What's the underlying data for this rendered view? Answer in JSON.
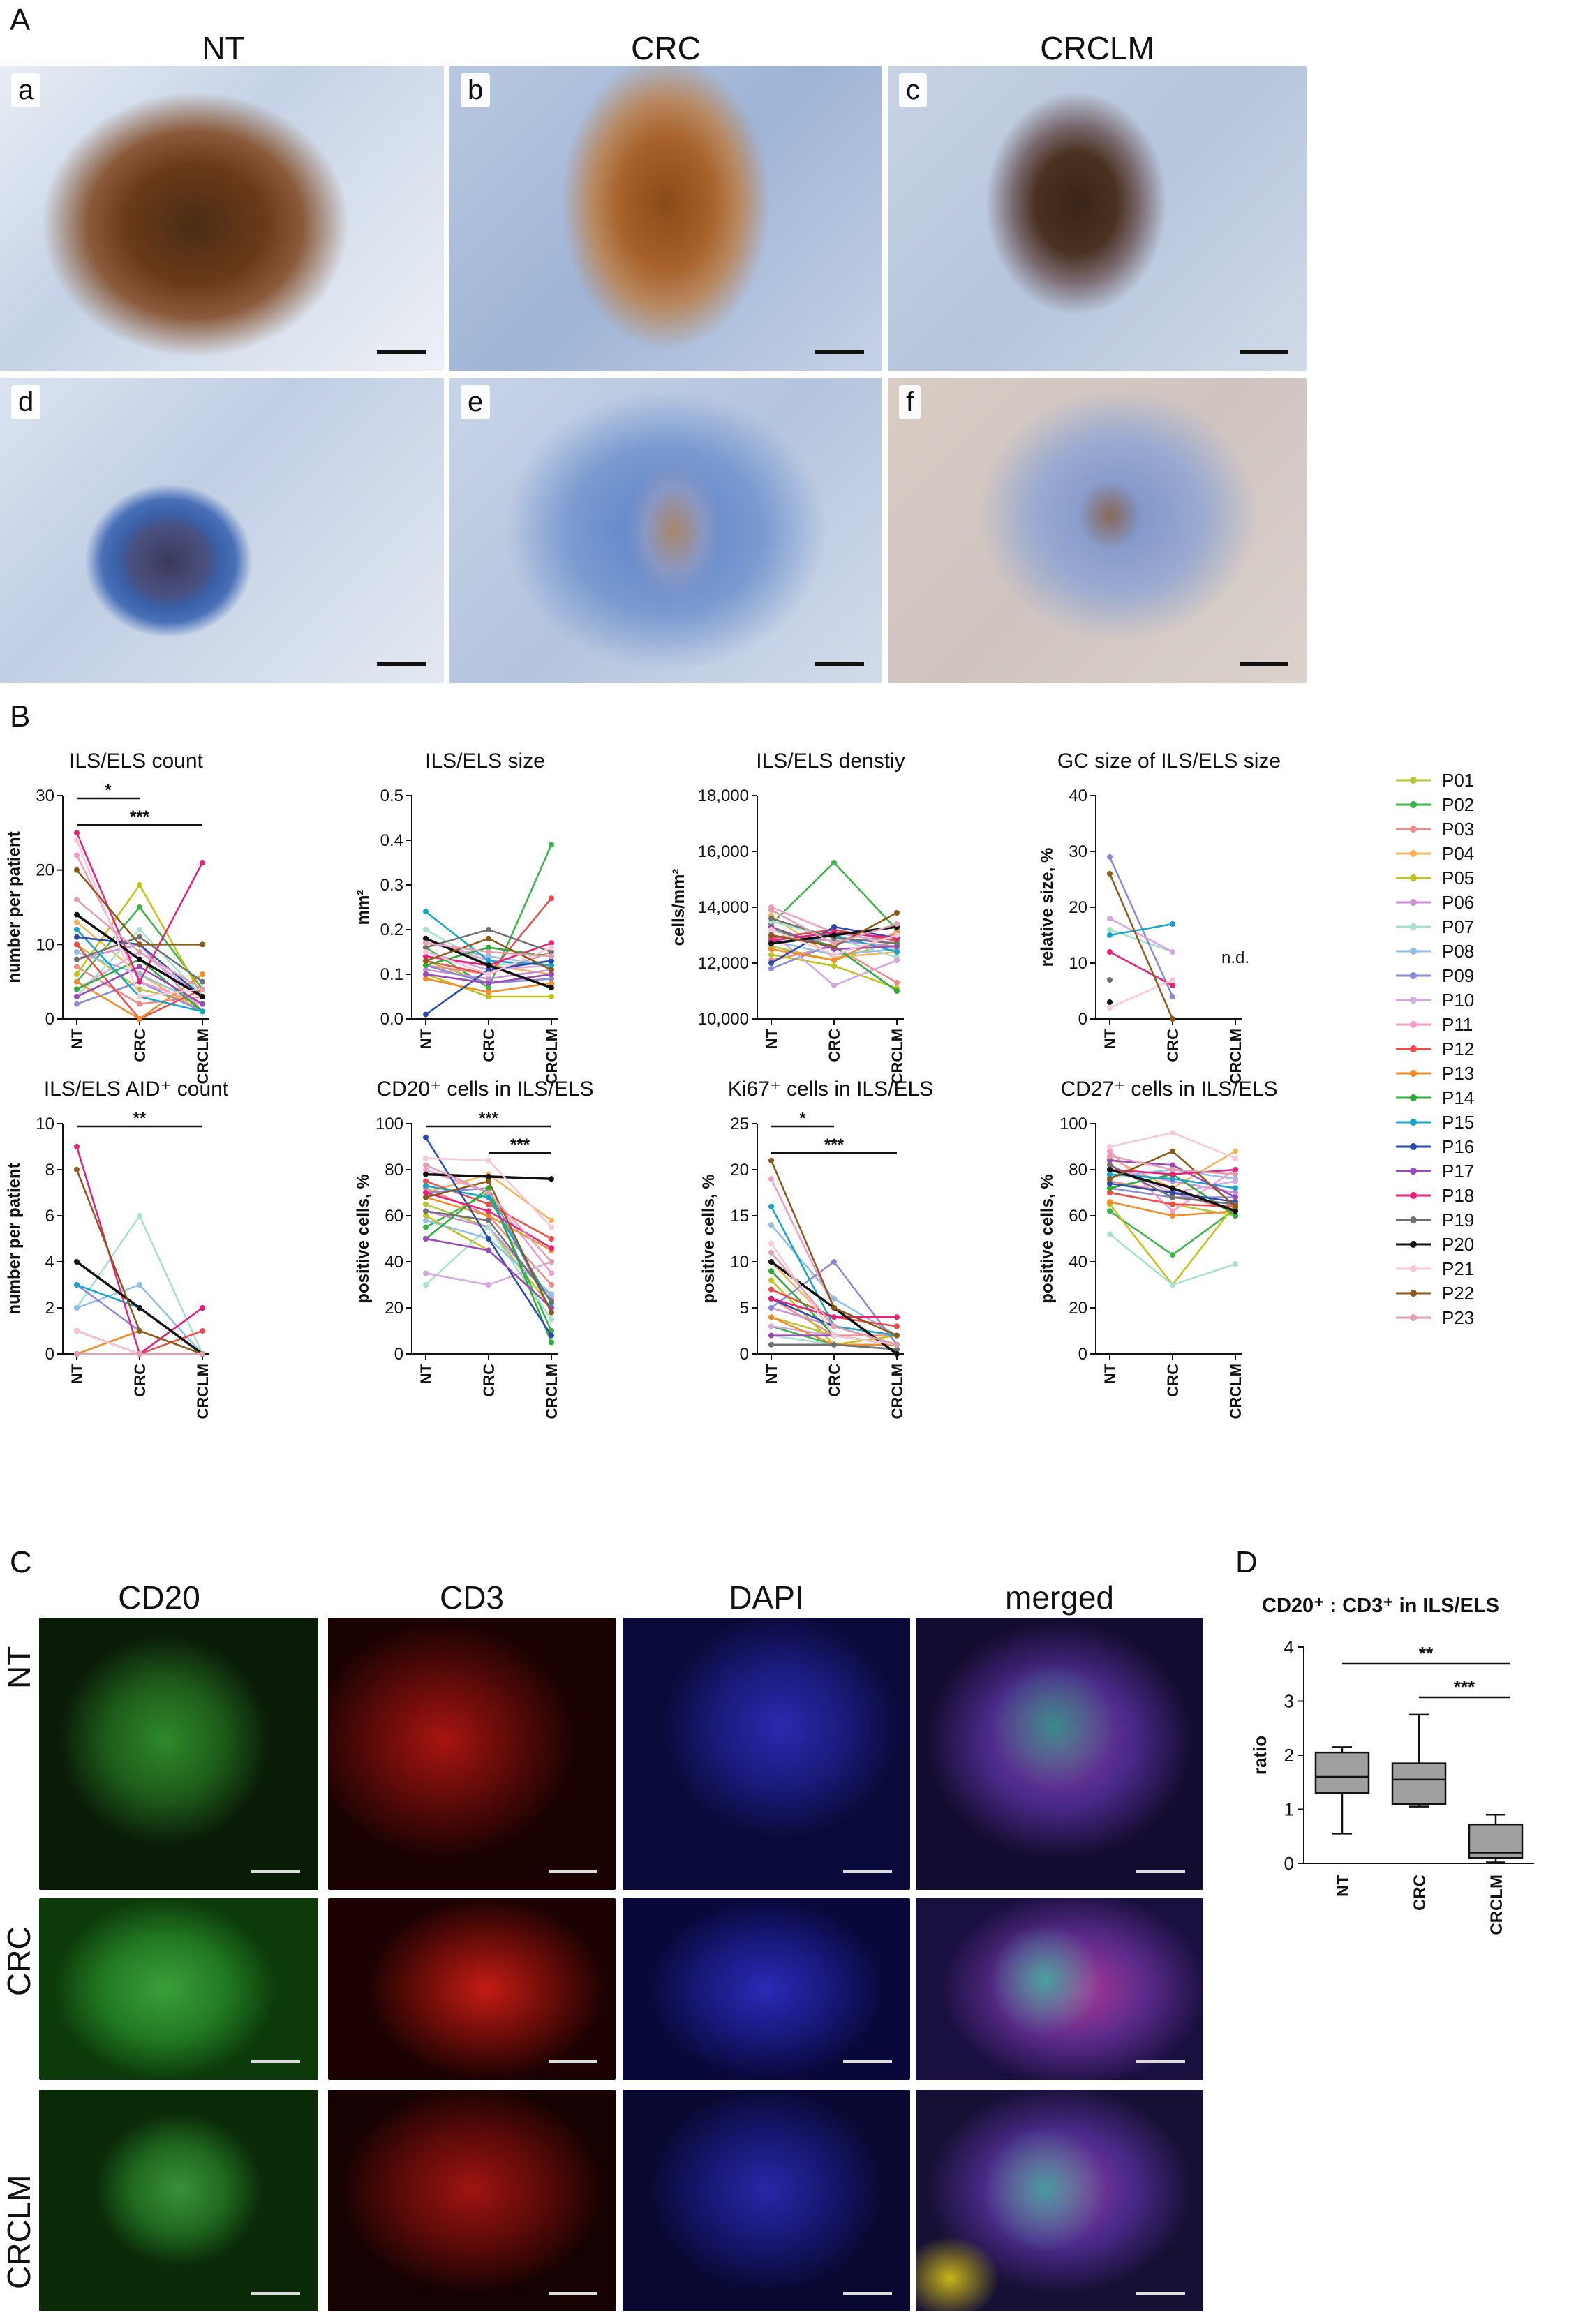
{
  "panels": {
    "A": "A",
    "B": "B",
    "C": "C",
    "D": "D"
  },
  "A": {
    "columns": [
      "NT",
      "CRC",
      "CRCLM"
    ],
    "subpanels": [
      "a",
      "b",
      "c",
      "d",
      "e",
      "f"
    ]
  },
  "C": {
    "columns": [
      "CD20",
      "CD3",
      "DAPI",
      "merged"
    ],
    "rows": [
      "NT",
      "CRC",
      "CRCLM"
    ]
  },
  "legend": {
    "patients": [
      "P01",
      "P02",
      "P03",
      "P04",
      "P05",
      "P06",
      "P07",
      "P08",
      "P09",
      "P10",
      "P11",
      "P12",
      "P13",
      "P14",
      "P15",
      "P16",
      "P17",
      "P18",
      "P19",
      "P20",
      "P21",
      "P22",
      "P23"
    ],
    "colors": [
      "#b5c43a",
      "#3ab54a",
      "#f28a8a",
      "#f7b45a",
      "#c2c21a",
      "#c98fd6",
      "#a8e0cf",
      "#8fbfe8",
      "#8a8ad6",
      "#d6a8e0",
      "#f59cc8",
      "#f04a4a",
      "#f28c28",
      "#2eaa3a",
      "#1aa3c8",
      "#2a4ab0",
      "#9a4ab8",
      "#e8207a",
      "#707070",
      "#111111",
      "#f7c8d8",
      "#8a5a1a",
      "#e0a0b0"
    ]
  },
  "chart_data": [
    {
      "type": "line",
      "title": "ILS/ELS count",
      "ylabel": "number per patient",
      "categories": [
        "NT",
        "CRC",
        "CRCLM"
      ],
      "ylim": [
        0,
        30
      ],
      "yticks": [
        "0",
        "10",
        "20",
        "30"
      ],
      "series": [
        [
          10,
          4,
          2
        ],
        [
          5,
          15,
          4
        ],
        [
          7,
          2,
          3
        ],
        [
          13,
          6,
          1
        ],
        [
          6,
          18,
          3
        ],
        [
          8,
          10,
          1
        ],
        [
          3,
          12,
          3
        ],
        [
          9,
          6,
          2
        ],
        [
          2,
          5,
          1
        ],
        [
          4,
          9,
          3
        ],
        [
          22,
          5,
          2
        ],
        [
          10,
          0,
          4
        ],
        [
          5,
          0,
          6
        ],
        [
          4,
          8,
          1
        ],
        [
          12,
          3,
          1
        ],
        [
          11,
          10,
          3
        ],
        [
          3,
          7,
          2
        ],
        [
          25,
          5,
          21
        ],
        [
          8,
          11,
          5
        ],
        [
          14,
          8,
          3
        ],
        [
          24,
          3,
          4
        ],
        [
          20,
          10,
          10
        ],
        [
          16,
          9,
          4
        ]
      ],
      "significance": [
        {
          "from": 0,
          "to": 1,
          "label": "*"
        },
        {
          "from": 0,
          "to": 2,
          "label": "***"
        }
      ]
    },
    {
      "type": "line",
      "title": "ILS/ELS size",
      "ylabel": "mm²",
      "categories": [
        "NT",
        "CRC",
        "CRCLM"
      ],
      "ylim": [
        0,
        0.5
      ],
      "yticks": [
        "0.0",
        "0.1",
        "0.2",
        "0.3",
        "0.4",
        "0.5"
      ],
      "series": [
        [
          0.13,
          0.08,
          0.1
        ],
        [
          0.16,
          0.07,
          0.39
        ],
        [
          0.12,
          0.1,
          0.15
        ],
        [
          0.14,
          0.12,
          0.1
        ],
        [
          0.1,
          0.05,
          0.05
        ],
        [
          0.11,
          0.09,
          0.11
        ],
        [
          0.2,
          0.12,
          0.13
        ],
        [
          0.17,
          0.14,
          0.12
        ],
        [
          0.12,
          0.08,
          0.09
        ],
        [
          0.15,
          0.11,
          0.12
        ],
        [
          0.18,
          0.13,
          0.12
        ],
        [
          0.13,
          0.1,
          0.27
        ],
        [
          0.09,
          0.06,
          0.08
        ],
        [
          0.12,
          0.16,
          0.14
        ],
        [
          0.24,
          0.13,
          0.12
        ],
        [
          0.01,
          0.11,
          0.13
        ],
        [
          0.1,
          0.08,
          0.1
        ],
        [
          0.14,
          0.12,
          0.17
        ],
        [
          0.16,
          0.2,
          0.15
        ],
        [
          0.18,
          0.12,
          0.07
        ],
        [
          0.15,
          0.1,
          0.16
        ],
        [
          0.13,
          0.18,
          0.11
        ],
        [
          0.17,
          0.15,
          0.14
        ]
      ]
    },
    {
      "type": "line",
      "title": "ILS/ELS denstiy",
      "ylabel": "cells/mm²",
      "categories": [
        "NT",
        "CRC",
        "CRCLM"
      ],
      "ylim": [
        10000,
        18000
      ],
      "yticks": [
        "10,000",
        "12,000",
        "14,000",
        "16,000",
        "18,000"
      ],
      "series": [
        [
          12600,
          12100,
          12800
        ],
        [
          13400,
          15600,
          13200
        ],
        [
          12100,
          12600,
          11300
        ],
        [
          13700,
          12200,
          12400
        ],
        [
          12300,
          11900,
          11100
        ],
        [
          12900,
          12800,
          12600
        ],
        [
          13500,
          12900,
          12200
        ],
        [
          12800,
          12300,
          12500
        ],
        [
          11800,
          12700,
          13000
        ],
        [
          13100,
          11200,
          12100
        ],
        [
          14000,
          13100,
          12700
        ],
        [
          12900,
          13200,
          12800
        ],
        [
          12500,
          12100,
          13100
        ],
        [
          13200,
          12600,
          11000
        ],
        [
          12700,
          13000,
          12400
        ],
        [
          12000,
          13300,
          12900
        ],
        [
          13300,
          12500,
          12600
        ],
        [
          12800,
          13100,
          12900
        ],
        [
          13600,
          12900,
          12700
        ],
        [
          12700,
          13000,
          13300
        ],
        [
          13200,
          12300,
          13000
        ],
        [
          13000,
          12600,
          13800
        ],
        [
          13900,
          12700,
          13400
        ]
      ]
    },
    {
      "type": "line",
      "title": "GC size of ILS/ELS size",
      "ylabel": "relative size, %",
      "categories": [
        "NT",
        "CRC",
        "CRCLM"
      ],
      "ylim": [
        0,
        40
      ],
      "yticks": [
        "0",
        "10",
        "20",
        "30",
        "40"
      ],
      "annotation": "n.d.",
      "series": [
        [
          null,
          null,
          null
        ],
        [
          null,
          null,
          null
        ],
        [
          null,
          null,
          null
        ],
        [
          null,
          null,
          null
        ],
        [
          null,
          null,
          null
        ],
        [
          null,
          null,
          null
        ],
        [
          16,
          12,
          null
        ],
        [
          null,
          null,
          null
        ],
        [
          29,
          4,
          null
        ],
        [
          18,
          12,
          null
        ],
        [
          null,
          null,
          null
        ],
        [
          null,
          null,
          null
        ],
        [
          null,
          null,
          null
        ],
        [
          null,
          null,
          null
        ],
        [
          15,
          17,
          null
        ],
        [
          null,
          null,
          null
        ],
        [
          null,
          null,
          null
        ],
        [
          12,
          6,
          null
        ],
        [
          7,
          null,
          null
        ],
        [
          3,
          null,
          null
        ],
        [
          2,
          7,
          null
        ],
        [
          26,
          0,
          null
        ],
        [
          null,
          null,
          null
        ]
      ]
    },
    {
      "type": "line",
      "title": "ILS/ELS AID⁺ count",
      "ylabel": "number per patient",
      "categories": [
        "NT",
        "CRC",
        "CRCLM"
      ],
      "ylim": [
        0,
        10
      ],
      "yticks": [
        "0",
        "2",
        "4",
        "6",
        "8",
        "10"
      ],
      "series": [
        [
          0,
          0,
          0
        ],
        [
          0,
          0,
          0
        ],
        [
          1,
          0,
          0
        ],
        [
          0,
          1,
          0
        ],
        [
          0,
          0,
          0
        ],
        [
          1,
          0,
          0
        ],
        [
          2,
          6,
          0
        ],
        [
          2,
          3,
          0
        ],
        [
          3,
          1,
          0
        ],
        [
          1,
          0,
          0
        ],
        [
          0,
          0,
          0
        ],
        [
          0,
          0,
          1
        ],
        [
          0,
          1,
          0
        ],
        [
          0,
          0,
          0
        ],
        [
          3,
          2,
          0
        ],
        [
          0,
          0,
          0
        ],
        [
          1,
          0,
          2
        ],
        [
          9,
          0,
          2
        ],
        [
          0,
          0,
          0
        ],
        [
          4,
          2,
          0
        ],
        [
          1,
          0,
          0
        ],
        [
          8,
          1,
          0
        ],
        [
          0,
          0,
          0
        ]
      ],
      "significance": [
        {
          "from": 0,
          "to": 2,
          "label": "**"
        }
      ]
    },
    {
      "type": "line",
      "title": "CD20⁺ cells in ILS/ELS",
      "ylabel": "positive cells, %",
      "categories": [
        "NT",
        "CRC",
        "CRCLM"
      ],
      "ylim": [
        0,
        100
      ],
      "yticks": [
        "0",
        "20",
        "40",
        "60",
        "80",
        "100"
      ],
      "series": [
        [
          65,
          55,
          20
        ],
        [
          55,
          70,
          10
        ],
        [
          72,
          60,
          30
        ],
        [
          70,
          78,
          58
        ],
        [
          60,
          45,
          20
        ],
        [
          62,
          55,
          25
        ],
        [
          30,
          55,
          15
        ],
        [
          58,
          50,
          26
        ],
        [
          70,
          72,
          18
        ],
        [
          35,
          30,
          40
        ],
        [
          80,
          70,
          35
        ],
        [
          75,
          65,
          50
        ],
        [
          68,
          60,
          45
        ],
        [
          50,
          72,
          5
        ],
        [
          73,
          68,
          22
        ],
        [
          94,
          50,
          8
        ],
        [
          50,
          45,
          20
        ],
        [
          70,
          62,
          46
        ],
        [
          62,
          58,
          23
        ],
        [
          78,
          77,
          76
        ],
        [
          85,
          84,
          55
        ],
        [
          68,
          75,
          18
        ],
        [
          82,
          70,
          40
        ]
      ],
      "significance": [
        {
          "from": 0,
          "to": 2,
          "label": "***"
        },
        {
          "from": 1,
          "to": 2,
          "label": "***"
        }
      ]
    },
    {
      "type": "line",
      "title": "Ki67⁺ cells in ILS/ELS",
      "ylabel": "positive cells, %",
      "categories": [
        "NT",
        "CRC",
        "CRCLM"
      ],
      "ylim": [
        0,
        25
      ],
      "yticks": [
        "0",
        "5",
        "10",
        "15",
        "20",
        "25"
      ],
      "series": [
        [
          4,
          2,
          1
        ],
        [
          3,
          1,
          0.5
        ],
        [
          6,
          2,
          2
        ],
        [
          10,
          3,
          1
        ],
        [
          8,
          1,
          2
        ],
        [
          5,
          3,
          1
        ],
        [
          2,
          1,
          0.5
        ],
        [
          14,
          6,
          2
        ],
        [
          5,
          10,
          1
        ],
        [
          3,
          2,
          1
        ],
        [
          19,
          5,
          2
        ],
        [
          7,
          4,
          3
        ],
        [
          4,
          1,
          1
        ],
        [
          9,
          2,
          1
        ],
        [
          16,
          3,
          2
        ],
        [
          6,
          3,
          1
        ],
        [
          2,
          2,
          1
        ],
        [
          6,
          4,
          4
        ],
        [
          1,
          1,
          0.5
        ],
        [
          10,
          5,
          0
        ],
        [
          12,
          2,
          1
        ],
        [
          21,
          5,
          2
        ],
        [
          11,
          3,
          1
        ]
      ],
      "significance": [
        {
          "from": 0,
          "to": 1,
          "label": "*"
        },
        {
          "from": 0,
          "to": 2,
          "label": "***"
        }
      ]
    },
    {
      "type": "line",
      "title": "CD27⁺ cells in ILS/ELS",
      "ylabel": "positive cells, %",
      "categories": [
        "NT",
        "CRC",
        "CRCLM"
      ],
      "ylim": [
        0,
        100
      ],
      "yticks": [
        "0",
        "20",
        "40",
        "60",
        "80",
        "100"
      ],
      "series": [
        [
          70,
          65,
          60
        ],
        [
          62,
          43,
          63
        ],
        [
          75,
          70,
          62
        ],
        [
          85,
          72,
          88
        ],
        [
          65,
          30,
          65
        ],
        [
          80,
          75,
          70
        ],
        [
          52,
          30,
          39
        ],
        [
          77,
          80,
          76
        ],
        [
          72,
          68,
          68
        ],
        [
          82,
          70,
          75
        ],
        [
          88,
          62,
          80
        ],
        [
          70,
          65,
          64
        ],
        [
          66,
          60,
          62
        ],
        [
          72,
          78,
          60
        ],
        [
          78,
          76,
          72
        ],
        [
          74,
          70,
          66
        ],
        [
          84,
          82,
          68
        ],
        [
          80,
          78,
          80
        ],
        [
          82,
          68,
          65
        ],
        [
          80,
          72,
          62
        ],
        [
          90,
          96,
          85
        ],
        [
          76,
          88,
          64
        ],
        [
          86,
          80,
          78
        ]
      ]
    },
    {
      "type": "box",
      "title": "CD20⁺ : CD3⁺ in ILS/ELS",
      "ylabel": "ratio",
      "categories": [
        "NT",
        "CRC",
        "CRCLM"
      ],
      "ylim": [
        0,
        4
      ],
      "yticks": [
        "0",
        "1",
        "2",
        "3",
        "4"
      ],
      "boxes": [
        {
          "min": 0.55,
          "q1": 1.3,
          "median": 1.6,
          "q3": 2.05,
          "max": 2.15
        },
        {
          "min": 1.05,
          "q1": 1.1,
          "median": 1.55,
          "q3": 1.85,
          "max": 2.75
        },
        {
          "min": 0.02,
          "q1": 0.1,
          "median": 0.2,
          "q3": 0.72,
          "max": 0.9
        }
      ],
      "significance": [
        {
          "from": 0,
          "to": 2,
          "label": "**"
        },
        {
          "from": 1,
          "to": 2,
          "label": "***"
        }
      ]
    }
  ]
}
